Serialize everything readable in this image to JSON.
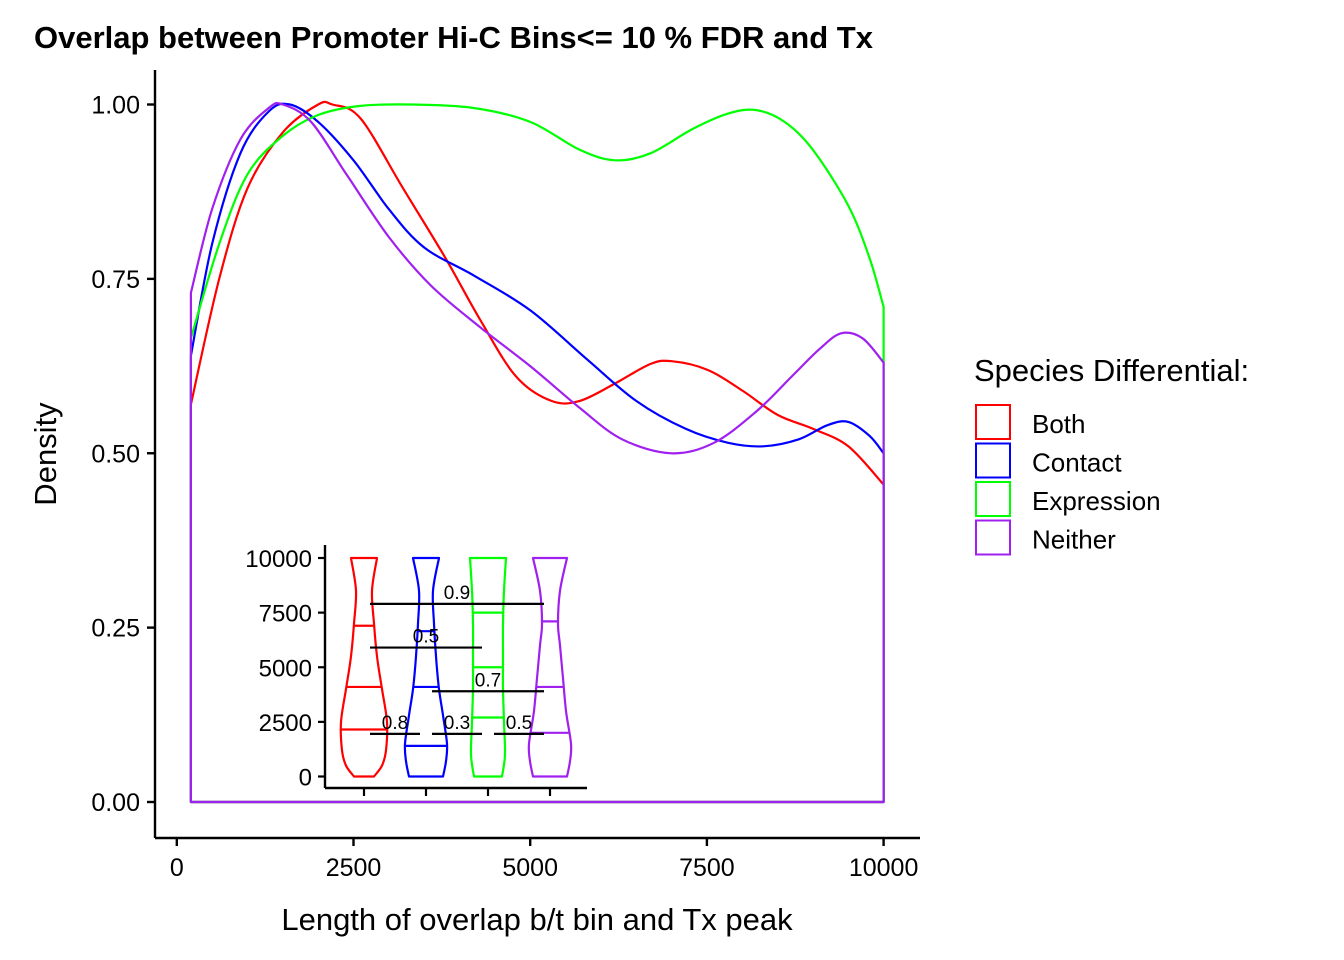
{
  "chart_data": [
    {
      "type": "line",
      "title": "Overlap between Promoter Hi-C Bins<= 10 % FDR and Tx",
      "xlabel": "Length of overlap b/t bin and Tx peak",
      "ylabel": "Density",
      "xlim": [
        -300,
        10500
      ],
      "ylim": [
        -0.05,
        1.05
      ],
      "x_ticks": [
        "0",
        "2500",
        "5000",
        "7500",
        "10000"
      ],
      "y_ticks": [
        "0.00",
        "0.25",
        "0.50",
        "0.75",
        "1.00"
      ],
      "grid": false,
      "legend": {
        "title": "Species Differential:",
        "placement": "right",
        "items": [
          "Both",
          "Contact",
          "Expression",
          "Neither"
        ]
      },
      "series": [
        {
          "name": "Both",
          "color": "#FF0000",
          "points": [
            [
              200,
              0.57
            ],
            [
              600,
              0.75
            ],
            [
              1000,
              0.88
            ],
            [
              1500,
              0.96
            ],
            [
              2000,
              1.0
            ],
            [
              2200,
              1.0
            ],
            [
              2600,
              0.98
            ],
            [
              3200,
              0.88
            ],
            [
              3800,
              0.78
            ],
            [
              4300,
              0.69
            ],
            [
              4800,
              0.61
            ],
            [
              5300,
              0.575
            ],
            [
              5700,
              0.575
            ],
            [
              6200,
              0.6
            ],
            [
              6700,
              0.628
            ],
            [
              7000,
              0.632
            ],
            [
              7500,
              0.62
            ],
            [
              8000,
              0.59
            ],
            [
              8500,
              0.555
            ],
            [
              9000,
              0.535
            ],
            [
              9500,
              0.51
            ],
            [
              10000,
              0.455
            ]
          ]
        },
        {
          "name": "Contact",
          "color": "#0000FF",
          "points": [
            [
              200,
              0.64
            ],
            [
              500,
              0.8
            ],
            [
              900,
              0.93
            ],
            [
              1300,
              0.99
            ],
            [
              1600,
              1.0
            ],
            [
              2000,
              0.975
            ],
            [
              2500,
              0.92
            ],
            [
              3000,
              0.85
            ],
            [
              3500,
              0.795
            ],
            [
              4200,
              0.755
            ],
            [
              5000,
              0.705
            ],
            [
              5800,
              0.635
            ],
            [
              6500,
              0.575
            ],
            [
              7200,
              0.535
            ],
            [
              7800,
              0.515
            ],
            [
              8300,
              0.51
            ],
            [
              8800,
              0.52
            ],
            [
              9200,
              0.54
            ],
            [
              9500,
              0.545
            ],
            [
              9800,
              0.525
            ],
            [
              10000,
              0.5
            ]
          ]
        },
        {
          "name": "Expression",
          "color": "#00FF00",
          "points": [
            [
              200,
              0.665
            ],
            [
              600,
              0.8
            ],
            [
              1000,
              0.9
            ],
            [
              1500,
              0.955
            ],
            [
              2000,
              0.985
            ],
            [
              2600,
              0.998
            ],
            [
              3300,
              1.0
            ],
            [
              4200,
              0.995
            ],
            [
              5000,
              0.975
            ],
            [
              5700,
              0.935
            ],
            [
              6200,
              0.92
            ],
            [
              6700,
              0.93
            ],
            [
              7300,
              0.965
            ],
            [
              7800,
              0.987
            ],
            [
              8200,
              0.992
            ],
            [
              8600,
              0.975
            ],
            [
              9000,
              0.935
            ],
            [
              9500,
              0.855
            ],
            [
              9800,
              0.78
            ],
            [
              10000,
              0.71
            ]
          ]
        },
        {
          "name": "Neither",
          "color": "#A020F0",
          "points": [
            [
              200,
              0.73
            ],
            [
              500,
              0.85
            ],
            [
              900,
              0.95
            ],
            [
              1300,
              0.995
            ],
            [
              1500,
              1.0
            ],
            [
              1900,
              0.975
            ],
            [
              2400,
              0.9
            ],
            [
              3000,
              0.81
            ],
            [
              3600,
              0.74
            ],
            [
              4300,
              0.68
            ],
            [
              5000,
              0.625
            ],
            [
              5700,
              0.565
            ],
            [
              6300,
              0.52
            ],
            [
              7000,
              0.5
            ],
            [
              7600,
              0.515
            ],
            [
              8200,
              0.56
            ],
            [
              8700,
              0.61
            ],
            [
              9100,
              0.65
            ],
            [
              9400,
              0.672
            ],
            [
              9700,
              0.665
            ],
            [
              10000,
              0.63
            ]
          ]
        }
      ]
    },
    {
      "type": "violin",
      "title": "",
      "ylim": [
        -500,
        10500
      ],
      "y_ticks": [
        "0",
        "2500",
        "5000",
        "7500",
        "10000"
      ],
      "categories": [
        "Both",
        "Contact",
        "Expression",
        "Neither"
      ],
      "colors": [
        "#FF0000",
        "#0000FF",
        "#00FF00",
        "#A020F0"
      ],
      "quantiles": [
        [
          2150,
          4100,
          6900
        ],
        [
          1400,
          4100,
          6650
        ],
        [
          2700,
          5000,
          7500
        ],
        [
          2000,
          4100,
          7100
        ]
      ],
      "comparisons": [
        {
          "groups": [
            1,
            4
          ],
          "y": 7900,
          "label": "0.9"
        },
        {
          "groups": [
            1,
            3
          ],
          "y": 5900,
          "label": "0.5"
        },
        {
          "groups": [
            2,
            4
          ],
          "y": 3900,
          "label": "0.7"
        },
        {
          "groups": [
            1,
            2
          ],
          "y": 1950,
          "label": "0.8"
        },
        {
          "groups": [
            2,
            3
          ],
          "y": 1950,
          "label": "0.3"
        },
        {
          "groups": [
            3,
            4
          ],
          "y": 1950,
          "label": "0.5"
        }
      ]
    }
  ]
}
